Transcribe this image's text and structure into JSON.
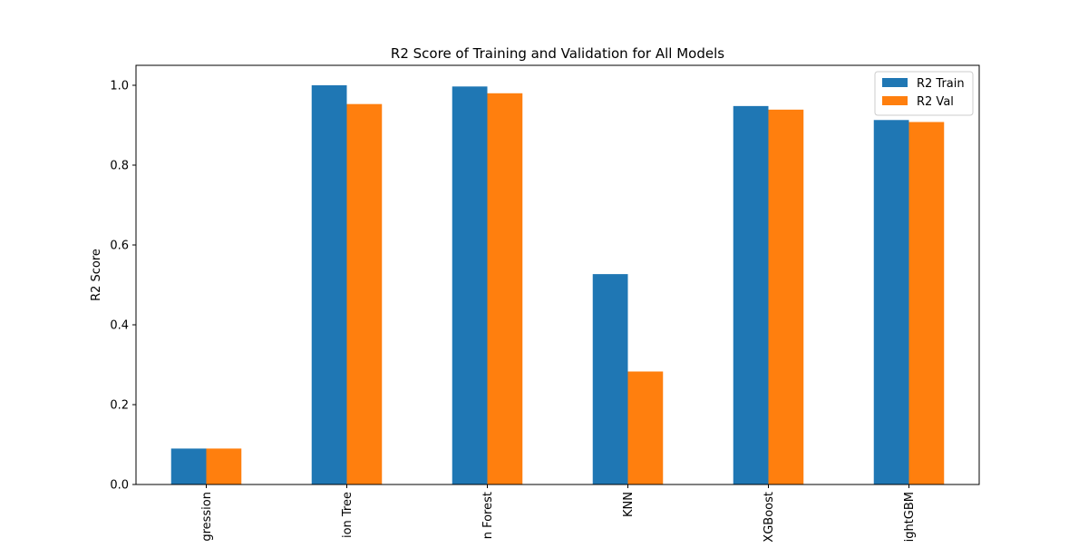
{
  "chart_data": {
    "type": "bar",
    "title": "R2 Score of Training and Validation for All Models",
    "xlabel": "",
    "ylabel": "R2 Score",
    "categories": [
      "gression",
      "ion Tree",
      "n Forest",
      "KNN",
      "XGBoost",
      "ightGBM"
    ],
    "series": [
      {
        "name": "R2 Train",
        "color": "#1f77b4",
        "values": [
          0.09,
          1.0,
          0.997,
          0.527,
          0.948,
          0.913
        ]
      },
      {
        "name": "R2 Val",
        "color": "#ff7f0e",
        "values": [
          0.09,
          0.953,
          0.98,
          0.283,
          0.939,
          0.908
        ]
      }
    ],
    "ylim": [
      0.0,
      1.05
    ],
    "yticks": [
      0.0,
      0.2,
      0.4,
      0.6,
      0.8,
      1.0
    ],
    "ytick_labels": [
      "0.0",
      "0.2",
      "0.4",
      "0.6",
      "0.8",
      "1.0"
    ],
    "xtick_rotation": "vertical",
    "grid": false,
    "legend_position": "top-right"
  }
}
